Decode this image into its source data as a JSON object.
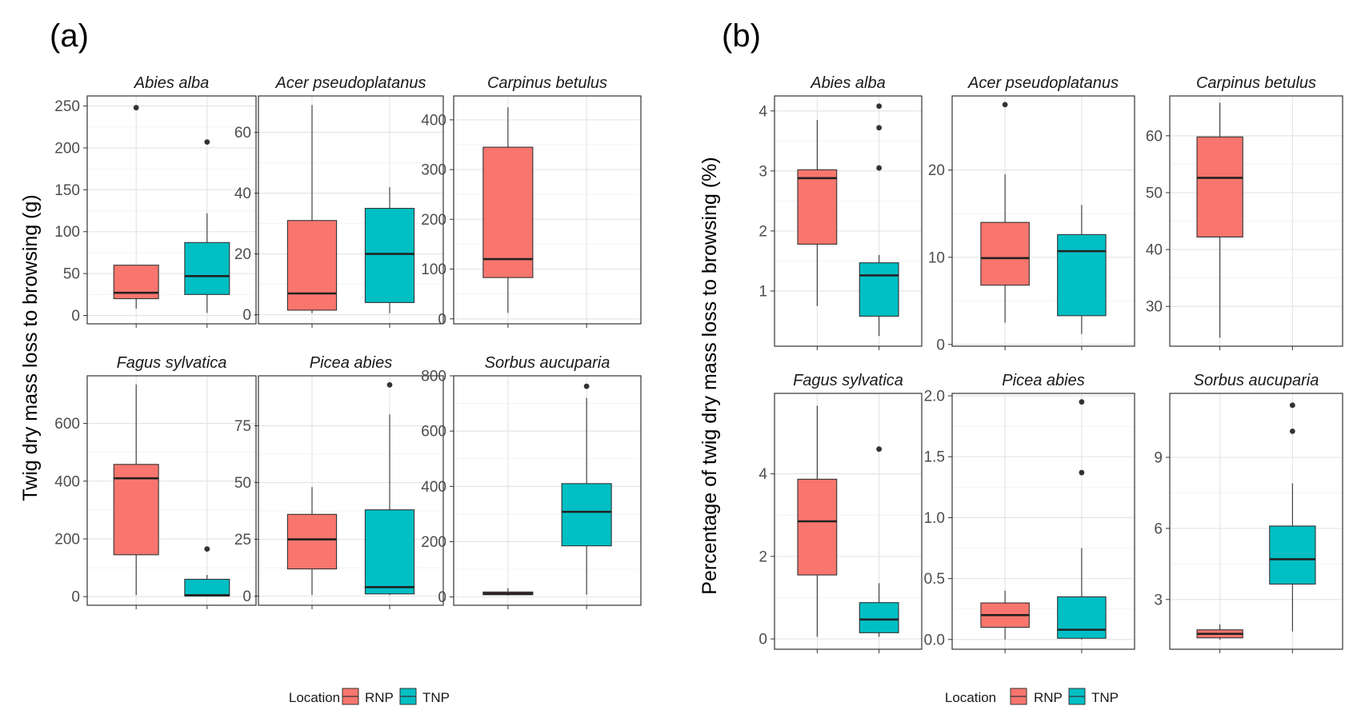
{
  "figure": {
    "legend_title": "Location",
    "colors": {
      "RNP": "#F8766D",
      "TNP": "#00BFC4"
    }
  },
  "chart_data": [
    {
      "type": "box",
      "panel_label": "(a)",
      "ylabel": "Twig dry mass loss to browsing (g)",
      "legend": {
        "title": "Location",
        "entries": [
          "RNP",
          "TNP"
        ],
        "placement": "bottom"
      },
      "grid": true,
      "facets": [
        {
          "title": "Abies alba",
          "ylim": [
            -10,
            262
          ],
          "ticks": [
            0,
            50,
            100,
            150,
            200,
            250
          ],
          "groups": [
            {
              "name": "RNP",
              "min": 8,
              "q1": 20,
              "median": 27,
              "q3": 60,
              "max": 60,
              "outliers": [
                248
              ]
            },
            {
              "name": "TNP",
              "min": 3,
              "q1": 25,
              "median": 47,
              "q3": 87,
              "max": 122,
              "outliers": [
                207
              ]
            }
          ]
        },
        {
          "title": "Acer pseudoplatanus",
          "ylim": [
            -3,
            72
          ],
          "ticks": [
            0,
            20,
            40,
            60
          ],
          "groups": [
            {
              "name": "RNP",
              "min": 0.5,
              "q1": 1.5,
              "median": 7,
              "q3": 31,
              "max": 69,
              "outliers": []
            },
            {
              "name": "TNP",
              "min": 0.5,
              "q1": 4,
              "median": 20,
              "q3": 35,
              "max": 42,
              "outliers": []
            }
          ]
        },
        {
          "title": "Carpinus betulus",
          "ylim": [
            -10,
            448
          ],
          "ticks": [
            0,
            100,
            200,
            300,
            400
          ],
          "groups": [
            {
              "name": "RNP",
              "min": 12,
              "q1": 83,
              "median": 120,
              "q3": 345,
              "max": 425,
              "outliers": []
            }
          ]
        },
        {
          "title": "Fagus sylvatica",
          "ylim": [
            -30,
            765
          ],
          "ticks": [
            0,
            200,
            400,
            600
          ],
          "groups": [
            {
              "name": "RNP",
              "min": 5,
              "q1": 145,
              "median": 410,
              "q3": 458,
              "max": 735,
              "outliers": []
            },
            {
              "name": "TNP",
              "min": 0,
              "q1": 2,
              "median": 5,
              "q3": 60,
              "max": 75,
              "outliers": [
                165
              ]
            }
          ]
        },
        {
          "title": "Picea abies",
          "ylim": [
            -4,
            97
          ],
          "ticks": [
            0,
            25,
            50,
            75
          ],
          "groups": [
            {
              "name": "RNP",
              "min": 0.5,
              "q1": 12,
              "median": 25,
              "q3": 36,
              "max": 48,
              "outliers": []
            },
            {
              "name": "TNP",
              "min": 0.5,
              "q1": 1,
              "median": 4,
              "q3": 38,
              "max": 80,
              "outliers": [
                93
              ]
            }
          ]
        },
        {
          "title": "Sorbus aucuparia",
          "ylim": [
            -30,
            800
          ],
          "ticks": [
            0,
            200,
            400,
            600,
            800
          ],
          "groups": [
            {
              "name": "RNP",
              "min": 5,
              "q1": 8,
              "median": 12,
              "q3": 18,
              "max": 32,
              "outliers": []
            },
            {
              "name": "TNP",
              "min": 8,
              "q1": 185,
              "median": 308,
              "q3": 410,
              "max": 720,
              "outliers": [
                762
              ]
            }
          ]
        }
      ]
    },
    {
      "type": "box",
      "panel_label": "(b)",
      "ylabel": "Percentage of twig dry mass loss to browsing (%)",
      "legend": {
        "title": "Location",
        "entries": [
          "RNP",
          "TNP"
        ],
        "placement": "bottom"
      },
      "grid": true,
      "facets": [
        {
          "title": "Abies alba",
          "ylim": [
            0.08,
            4.25
          ],
          "ticks": [
            1,
            2,
            3,
            4
          ],
          "groups": [
            {
              "name": "RNP",
              "min": 0.75,
              "q1": 1.78,
              "median": 2.88,
              "q3": 3.02,
              "max": 3.85,
              "outliers": []
            },
            {
              "name": "TNP",
              "min": 0.25,
              "q1": 0.58,
              "median": 1.26,
              "q3": 1.47,
              "max": 1.6,
              "outliers": [
                3.05,
                3.72,
                4.08
              ]
            }
          ]
        },
        {
          "title": "Acer pseudoplatanus",
          "ylim": [
            -0.2,
            28.5
          ],
          "ticks": [
            0,
            10,
            20
          ],
          "groups": [
            {
              "name": "RNP",
              "min": 2.5,
              "q1": 6.8,
              "median": 9.9,
              "q3": 14,
              "max": 19.5,
              "outliers": [
                27.5
              ]
            },
            {
              "name": "TNP",
              "min": 1.2,
              "q1": 3.3,
              "median": 10.7,
              "q3": 12.6,
              "max": 16,
              "outliers": []
            }
          ]
        },
        {
          "title": "Carpinus betulus",
          "ylim": [
            23,
            67
          ],
          "ticks": [
            30,
            40,
            50,
            60
          ],
          "groups": [
            {
              "name": "RNP",
              "min": 24.5,
              "q1": 42.2,
              "median": 52.6,
              "q3": 59.8,
              "max": 65.8,
              "outliers": []
            }
          ]
        },
        {
          "title": "Fagus sylvatica",
          "ylim": [
            -0.25,
            5.95
          ],
          "ticks": [
            0,
            2,
            4
          ],
          "groups": [
            {
              "name": "RNP",
              "min": 0.05,
              "q1": 1.55,
              "median": 2.85,
              "q3": 3.87,
              "max": 5.65,
              "outliers": []
            },
            {
              "name": "TNP",
              "min": 0.05,
              "q1": 0.15,
              "median": 0.47,
              "q3": 0.88,
              "max": 1.35,
              "outliers": [
                4.6
              ]
            }
          ]
        },
        {
          "title": "Picea abies",
          "ylim": [
            -0.08,
            2.02
          ],
          "ticks": [
            0.0,
            0.5,
            1.0,
            1.5,
            2.0
          ],
          "groups": [
            {
              "name": "RNP",
              "min": 0.0,
              "q1": 0.1,
              "median": 0.2,
              "q3": 0.3,
              "max": 0.4,
              "outliers": []
            },
            {
              "name": "TNP",
              "min": 0.0,
              "q1": 0.01,
              "median": 0.08,
              "q3": 0.35,
              "max": 0.75,
              "outliers": [
                1.37,
                1.95
              ]
            }
          ]
        },
        {
          "title": "Sorbus aucuparia",
          "ylim": [
            0.9,
            11.7
          ],
          "ticks": [
            3,
            6,
            9
          ],
          "groups": [
            {
              "name": "RNP",
              "min": 1.3,
              "q1": 1.38,
              "median": 1.55,
              "q3": 1.72,
              "max": 1.95,
              "outliers": []
            },
            {
              "name": "TNP",
              "min": 1.65,
              "q1": 3.65,
              "median": 4.7,
              "q3": 6.1,
              "max": 7.9,
              "outliers": [
                10.1,
                11.2
              ]
            }
          ]
        }
      ]
    }
  ]
}
